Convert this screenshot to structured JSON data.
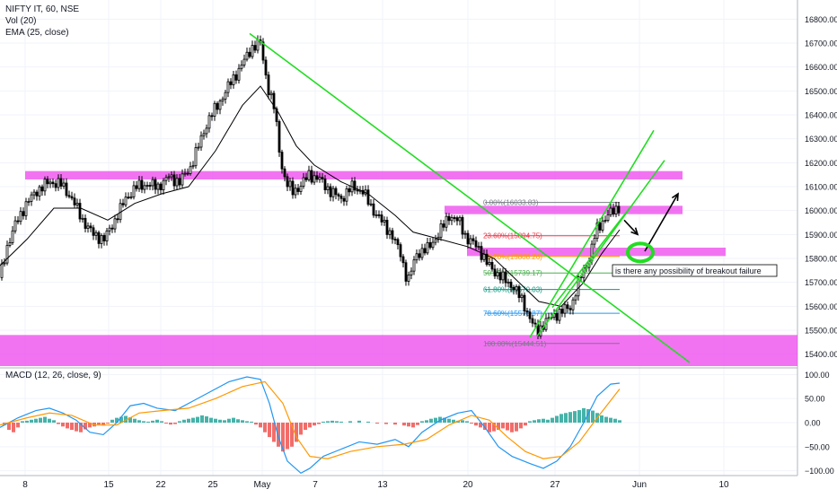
{
  "legend": {
    "symbol": "NIFTY IT, 60, NSE",
    "vol": "Vol (20)",
    "ema": "EMA (25, close)"
  },
  "macd_legend": "MACD (12, 26, close, 9)",
  "annotation": "is there any possibility of breakout failure",
  "colors": {
    "up": "#26a69a",
    "down": "#ef5350",
    "candle": "#000000",
    "zone": "#ee44ee",
    "trend": "#22dd22",
    "macd_line": "#2196f3",
    "signal_line": "#ff9800",
    "hist_up": "#26a69a",
    "hist_down": "#ef5350"
  },
  "chart_data": [
    {
      "type": "candlestick",
      "title": "NIFTY IT, 60, NSE",
      "indicators": [
        "Vol (20)",
        "EMA (25, close)"
      ],
      "xaxis_ticks": [
        "8",
        "15",
        "22",
        "25",
        "May",
        "7",
        "13",
        "20",
        "27",
        "Jun",
        "10"
      ],
      "yaxis_ticks": [
        16800,
        16700,
        16600,
        16500,
        16400,
        16300,
        16200,
        16100,
        16000,
        15900,
        15800,
        15700,
        15600,
        15500,
        15400
      ],
      "ylim": [
        15350,
        16850
      ],
      "price_path": [
        [
          0,
          15720
        ],
        [
          8,
          15850
        ],
        [
          18,
          15950
        ],
        [
          28,
          16020
        ],
        [
          40,
          16080
        ],
        [
          55,
          16120
        ],
        [
          68,
          16110
        ],
        [
          80,
          16050
        ],
        [
          92,
          15960
        ],
        [
          104,
          15900
        ],
        [
          116,
          15880
        ],
        [
          128,
          15960
        ],
        [
          140,
          16050
        ],
        [
          152,
          16100
        ],
        [
          164,
          16110
        ],
        [
          176,
          16100
        ],
        [
          188,
          16140
        ],
        [
          200,
          16120
        ],
        [
          212,
          16180
        ],
        [
          222,
          16280
        ],
        [
          232,
          16380
        ],
        [
          244,
          16450
        ],
        [
          256,
          16530
        ],
        [
          268,
          16600
        ],
        [
          280,
          16680
        ],
        [
          290,
          16700
        ],
        [
          298,
          16520
        ],
        [
          306,
          16420
        ],
        [
          312,
          16220
        ],
        [
          318,
          16120
        ],
        [
          326,
          16080
        ],
        [
          334,
          16100
        ],
        [
          344,
          16150
        ],
        [
          356,
          16130
        ],
        [
          368,
          16080
        ],
        [
          380,
          16050
        ],
        [
          392,
          16100
        ],
        [
          404,
          16080
        ],
        [
          414,
          16010
        ],
        [
          424,
          15960
        ],
        [
          436,
          15900
        ],
        [
          446,
          15820
        ],
        [
          454,
          15700
        ],
        [
          464,
          15820
        ],
        [
          476,
          15840
        ],
        [
          488,
          15900
        ],
        [
          500,
          15980
        ],
        [
          512,
          15950
        ],
        [
          520,
          15880
        ],
        [
          532,
          15850
        ],
        [
          542,
          15780
        ],
        [
          552,
          15740
        ],
        [
          562,
          15710
        ],
        [
          572,
          15680
        ],
        [
          582,
          15620
        ],
        [
          590,
          15550
        ],
        [
          598,
          15490
        ],
        [
          606,
          15530
        ],
        [
          616,
          15560
        ],
        [
          626,
          15580
        ],
        [
          636,
          15600
        ],
        [
          646,
          15720
        ],
        [
          656,
          15800
        ],
        [
          664,
          15920
        ],
        [
          672,
          15960
        ],
        [
          680,
          15990
        ],
        [
          690,
          16020
        ]
      ],
      "ema_path": [
        [
          0,
          15770
        ],
        [
          30,
          15880
        ],
        [
          60,
          16010
        ],
        [
          90,
          16010
        ],
        [
          120,
          15960
        ],
        [
          150,
          16030
        ],
        [
          180,
          16070
        ],
        [
          210,
          16100
        ],
        [
          240,
          16250
        ],
        [
          270,
          16440
        ],
        [
          290,
          16520
        ],
        [
          310,
          16410
        ],
        [
          330,
          16270
        ],
        [
          350,
          16190
        ],
        [
          380,
          16120
        ],
        [
          410,
          16070
        ],
        [
          440,
          15980
        ],
        [
          460,
          15910
        ],
        [
          490,
          15880
        ],
        [
          520,
          15850
        ],
        [
          550,
          15800
        ],
        [
          575,
          15710
        ],
        [
          600,
          15620
        ],
        [
          625,
          15600
        ],
        [
          650,
          15700
        ],
        [
          670,
          15820
        ],
        [
          690,
          15920
        ]
      ],
      "resistance_zones": [
        {
          "price_low": 16130,
          "price_high": 16165,
          "x_from": 28,
          "x_to": 760
        },
        {
          "price_low": 15985,
          "price_high": 16020,
          "x_from": 495,
          "x_to": 760
        },
        {
          "price_low": 15810,
          "price_high": 15845,
          "x_from": 520,
          "x_to": 808
        },
        {
          "price_low": 15350,
          "price_high": 15480,
          "x_from": 0,
          "x_to": 888
        }
      ],
      "trendlines": [
        {
          "x1": 278,
          "p1": 16740,
          "x2": 768,
          "p2": 15365
        },
        {
          "x1": 590,
          "p1": 15470,
          "x2": 728,
          "p2": 16335
        },
        {
          "x1": 598,
          "p1": 15475,
          "x2": 740,
          "p2": 16210
        },
        {
          "x1": 615,
          "p1": 15595,
          "x2": 702,
          "p2": 16015
        }
      ],
      "fibonacci": [
        {
          "label": "0.00%(16033.83)",
          "price": 16033.83,
          "color": "#787b86"
        },
        {
          "label": "23.60%(15894.75)",
          "price": 15894.75,
          "color": "#f23645"
        },
        {
          "label": "38.20%(15808.26)",
          "price": 15808.26,
          "color": "#ff9800"
        },
        {
          "label": "50.00%(15739.17)",
          "price": 15739.17,
          "color": "#4caf50"
        },
        {
          "label": "61.80%(15670.03)",
          "price": 15670.03,
          "color": "#089981"
        },
        {
          "label": "78.60%(15570.87)",
          "price": 15570.87,
          "color": "#2196f3"
        },
        {
          "label": "100.00%(15444.51)",
          "price": 15444.51,
          "color": "#787b86"
        }
      ],
      "fib_x_range": [
        540,
        690
      ],
      "projection_arrows": [
        {
          "x1": 695,
          "p1": 15960,
          "x2": 710,
          "p2": 15900
        },
        {
          "x1": 718,
          "p1": 15830,
          "x2": 755,
          "p2": 16070
        }
      ],
      "annotation_text": "is there any possibility of breakout failure"
    },
    {
      "type": "macd",
      "title": "MACD (12, 26, close, 9)",
      "yaxis_ticks": [
        100,
        50,
        0,
        -50,
        -100
      ],
      "ylim": [
        -110,
        110
      ],
      "macd_path": [
        [
          0,
          -10
        ],
        [
          20,
          10
        ],
        [
          40,
          25
        ],
        [
          55,
          30
        ],
        [
          70,
          20
        ],
        [
          85,
          5
        ],
        [
          100,
          -20
        ],
        [
          115,
          -25
        ],
        [
          130,
          0
        ],
        [
          145,
          35
        ],
        [
          160,
          40
        ],
        [
          175,
          30
        ],
        [
          195,
          25
        ],
        [
          215,
          45
        ],
        [
          235,
          65
        ],
        [
          255,
          85
        ],
        [
          275,
          95
        ],
        [
          290,
          90
        ],
        [
          300,
          40
        ],
        [
          310,
          -30
        ],
        [
          320,
          -80
        ],
        [
          335,
          -105
        ],
        [
          345,
          -95
        ],
        [
          360,
          -70
        ],
        [
          380,
          -55
        ],
        [
          400,
          -40
        ],
        [
          420,
          -45
        ],
        [
          440,
          -35
        ],
        [
          455,
          -50
        ],
        [
          470,
          -20
        ],
        [
          490,
          5
        ],
        [
          510,
          20
        ],
        [
          525,
          25
        ],
        [
          540,
          -10
        ],
        [
          555,
          -50
        ],
        [
          570,
          -70
        ],
        [
          590,
          -85
        ],
        [
          605,
          -95
        ],
        [
          620,
          -80
        ],
        [
          635,
          -50
        ],
        [
          650,
          0
        ],
        [
          665,
          55
        ],
        [
          680,
          80
        ],
        [
          690,
          82
        ]
      ],
      "signal_path": [
        [
          0,
          -5
        ],
        [
          30,
          10
        ],
        [
          55,
          20
        ],
        [
          80,
          15
        ],
        [
          105,
          -5
        ],
        [
          130,
          -5
        ],
        [
          155,
          20
        ],
        [
          180,
          25
        ],
        [
          210,
          30
        ],
        [
          240,
          50
        ],
        [
          270,
          75
        ],
        [
          295,
          85
        ],
        [
          315,
          40
        ],
        [
          330,
          -30
        ],
        [
          345,
          -70
        ],
        [
          365,
          -75
        ],
        [
          390,
          -60
        ],
        [
          420,
          -50
        ],
        [
          450,
          -45
        ],
        [
          475,
          -35
        ],
        [
          500,
          -5
        ],
        [
          525,
          15
        ],
        [
          545,
          5
        ],
        [
          565,
          -30
        ],
        [
          585,
          -60
        ],
        [
          605,
          -75
        ],
        [
          625,
          -70
        ],
        [
          645,
          -40
        ],
        [
          665,
          10
        ],
        [
          690,
          70
        ]
      ],
      "histogram": [
        [
          5,
          -5
        ],
        [
          10,
          -15
        ],
        [
          15,
          -20
        ],
        [
          20,
          -10
        ],
        [
          25,
          3
        ],
        [
          30,
          4
        ],
        [
          35,
          6
        ],
        [
          40,
          8
        ],
        [
          45,
          10
        ],
        [
          50,
          12
        ],
        [
          55,
          8
        ],
        [
          60,
          5
        ],
        [
          65,
          -3
        ],
        [
          70,
          -8
        ],
        [
          75,
          -12
        ],
        [
          80,
          -15
        ],
        [
          85,
          -18
        ],
        [
          90,
          -20
        ],
        [
          95,
          -14
        ],
        [
          100,
          -10
        ],
        [
          105,
          -8
        ],
        [
          110,
          -4
        ],
        [
          115,
          -6
        ],
        [
          120,
          -2
        ],
        [
          125,
          6
        ],
        [
          130,
          10
        ],
        [
          135,
          12
        ],
        [
          140,
          14
        ],
        [
          145,
          11
        ],
        [
          150,
          8
        ],
        [
          155,
          5
        ],
        [
          160,
          3
        ],
        [
          165,
          2
        ],
        [
          170,
          4
        ],
        [
          175,
          6
        ],
        [
          180,
          3
        ],
        [
          185,
          -2
        ],
        [
          190,
          -4
        ],
        [
          195,
          -3
        ],
        [
          200,
          3
        ],
        [
          205,
          6
        ],
        [
          210,
          8
        ],
        [
          215,
          10
        ],
        [
          220,
          12
        ],
        [
          225,
          15
        ],
        [
          230,
          13
        ],
        [
          235,
          10
        ],
        [
          240,
          8
        ],
        [
          245,
          6
        ],
        [
          250,
          5
        ],
        [
          255,
          8
        ],
        [
          260,
          10
        ],
        [
          265,
          7
        ],
        [
          270,
          5
        ],
        [
          275,
          3
        ],
        [
          280,
          2
        ],
        [
          285,
          -4
        ],
        [
          290,
          -10
        ],
        [
          295,
          -20
        ],
        [
          300,
          -30
        ],
        [
          305,
          -40
        ],
        [
          310,
          -50
        ],
        [
          315,
          -60
        ],
        [
          320,
          -55
        ],
        [
          325,
          -50
        ],
        [
          330,
          -40
        ],
        [
          335,
          -25
        ],
        [
          340,
          -15
        ],
        [
          345,
          -10
        ],
        [
          350,
          -6
        ],
        [
          355,
          -3
        ],
        [
          360,
          2
        ],
        [
          365,
          3
        ],
        [
          370,
          4
        ],
        [
          375,
          3
        ],
        [
          380,
          2
        ],
        [
          390,
          3
        ],
        [
          400,
          4
        ],
        [
          410,
          2
        ],
        [
          420,
          -2
        ],
        [
          430,
          -3
        ],
        [
          440,
          -4
        ],
        [
          450,
          -6
        ],
        [
          455,
          -8
        ],
        [
          460,
          -10
        ],
        [
          465,
          -5
        ],
        [
          470,
          3
        ],
        [
          475,
          5
        ],
        [
          480,
          8
        ],
        [
          485,
          10
        ],
        [
          490,
          12
        ],
        [
          495,
          10
        ],
        [
          500,
          8
        ],
        [
          505,
          6
        ],
        [
          510,
          4
        ],
        [
          515,
          5
        ],
        [
          520,
          3
        ],
        [
          525,
          -2
        ],
        [
          530,
          -6
        ],
        [
          535,
          -10
        ],
        [
          540,
          -15
        ],
        [
          545,
          -20
        ],
        [
          550,
          -18
        ],
        [
          555,
          -15
        ],
        [
          560,
          -12
        ],
        [
          565,
          -16
        ],
        [
          570,
          -20
        ],
        [
          575,
          -18
        ],
        [
          580,
          -12
        ],
        [
          585,
          -6
        ],
        [
          590,
          3
        ],
        [
          595,
          5
        ],
        [
          600,
          7
        ],
        [
          605,
          8
        ],
        [
          610,
          6
        ],
        [
          615,
          10
        ],
        [
          620,
          14
        ],
        [
          625,
          18
        ],
        [
          630,
          20
        ],
        [
          635,
          22
        ],
        [
          640,
          24
        ],
        [
          645,
          26
        ],
        [
          650,
          30
        ],
        [
          655,
          28
        ],
        [
          660,
          25
        ],
        [
          665,
          20
        ],
        [
          670,
          15
        ],
        [
          675,
          12
        ],
        [
          680,
          10
        ],
        [
          685,
          8
        ],
        [
          690,
          5
        ]
      ]
    }
  ]
}
